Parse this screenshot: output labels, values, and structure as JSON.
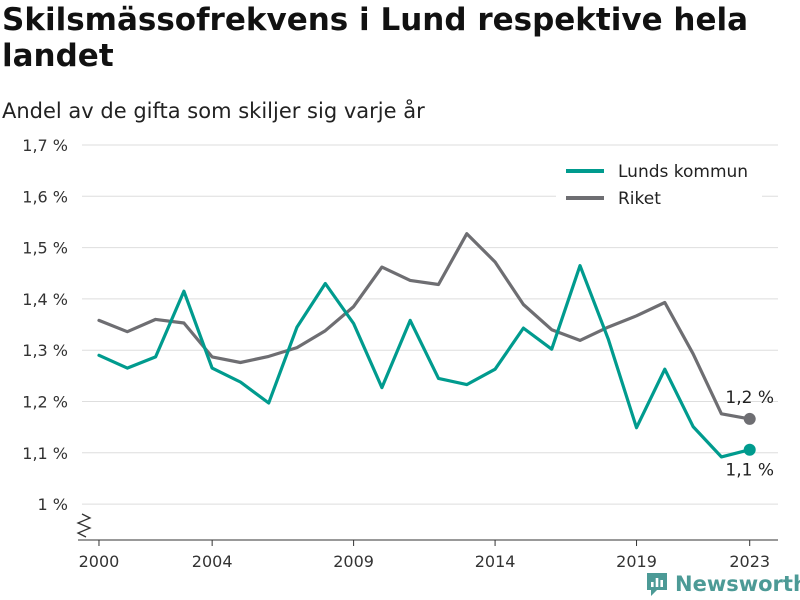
{
  "header": {
    "title": "Skilsmässofrekvens i Lund respektive hela landet",
    "subtitle": "Andel av de gifta som skiljer sig varje år"
  },
  "brand": {
    "name": "Newsworthy",
    "icon": "newsworthy-logo-icon",
    "color": "#4c9a96"
  },
  "chart_data": {
    "type": "line",
    "x": [
      2000,
      2001,
      2002,
      2003,
      2004,
      2005,
      2006,
      2007,
      2008,
      2009,
      2010,
      2011,
      2012,
      2013,
      2014,
      2015,
      2016,
      2017,
      2018,
      2019,
      2020,
      2021,
      2022,
      2023
    ],
    "x_ticks": [
      2000,
      2004,
      2009,
      2014,
      2019,
      2023
    ],
    "y_ticks": [
      1.0,
      1.1,
      1.2,
      1.3,
      1.4,
      1.5,
      1.6,
      1.7
    ],
    "y_tick_labels": [
      "1 %",
      "1,1 %",
      "1,2 %",
      "1,3 %",
      "1,4 %",
      "1,5 %",
      "1,6 %",
      "1,7 %"
    ],
    "ylim": [
      0.93,
      1.7
    ],
    "xlim": [
      1999.4,
      2024.0
    ],
    "grid": true,
    "axis_break": true,
    "legend_position": "top-right",
    "series": [
      {
        "name": "Lunds kommun",
        "color": "#009b8e",
        "values": [
          1.29,
          1.265,
          1.287,
          1.415,
          1.265,
          1.238,
          1.197,
          1.345,
          1.43,
          1.352,
          1.227,
          1.358,
          1.245,
          1.233,
          1.263,
          1.343,
          1.302,
          1.465,
          1.322,
          1.149,
          1.263,
          1.151,
          1.092,
          1.106
        ],
        "end_label": "1,1 %"
      },
      {
        "name": "Riket",
        "color": "#6e6e72",
        "values": [
          1.358,
          1.336,
          1.36,
          1.353,
          1.287,
          1.276,
          1.288,
          1.305,
          1.338,
          1.385,
          1.462,
          1.436,
          1.428,
          1.527,
          1.472,
          1.389,
          1.34,
          1.319,
          1.345,
          1.367,
          1.393,
          1.293,
          1.176,
          1.166
        ],
        "end_label": "1,2 %"
      }
    ]
  }
}
